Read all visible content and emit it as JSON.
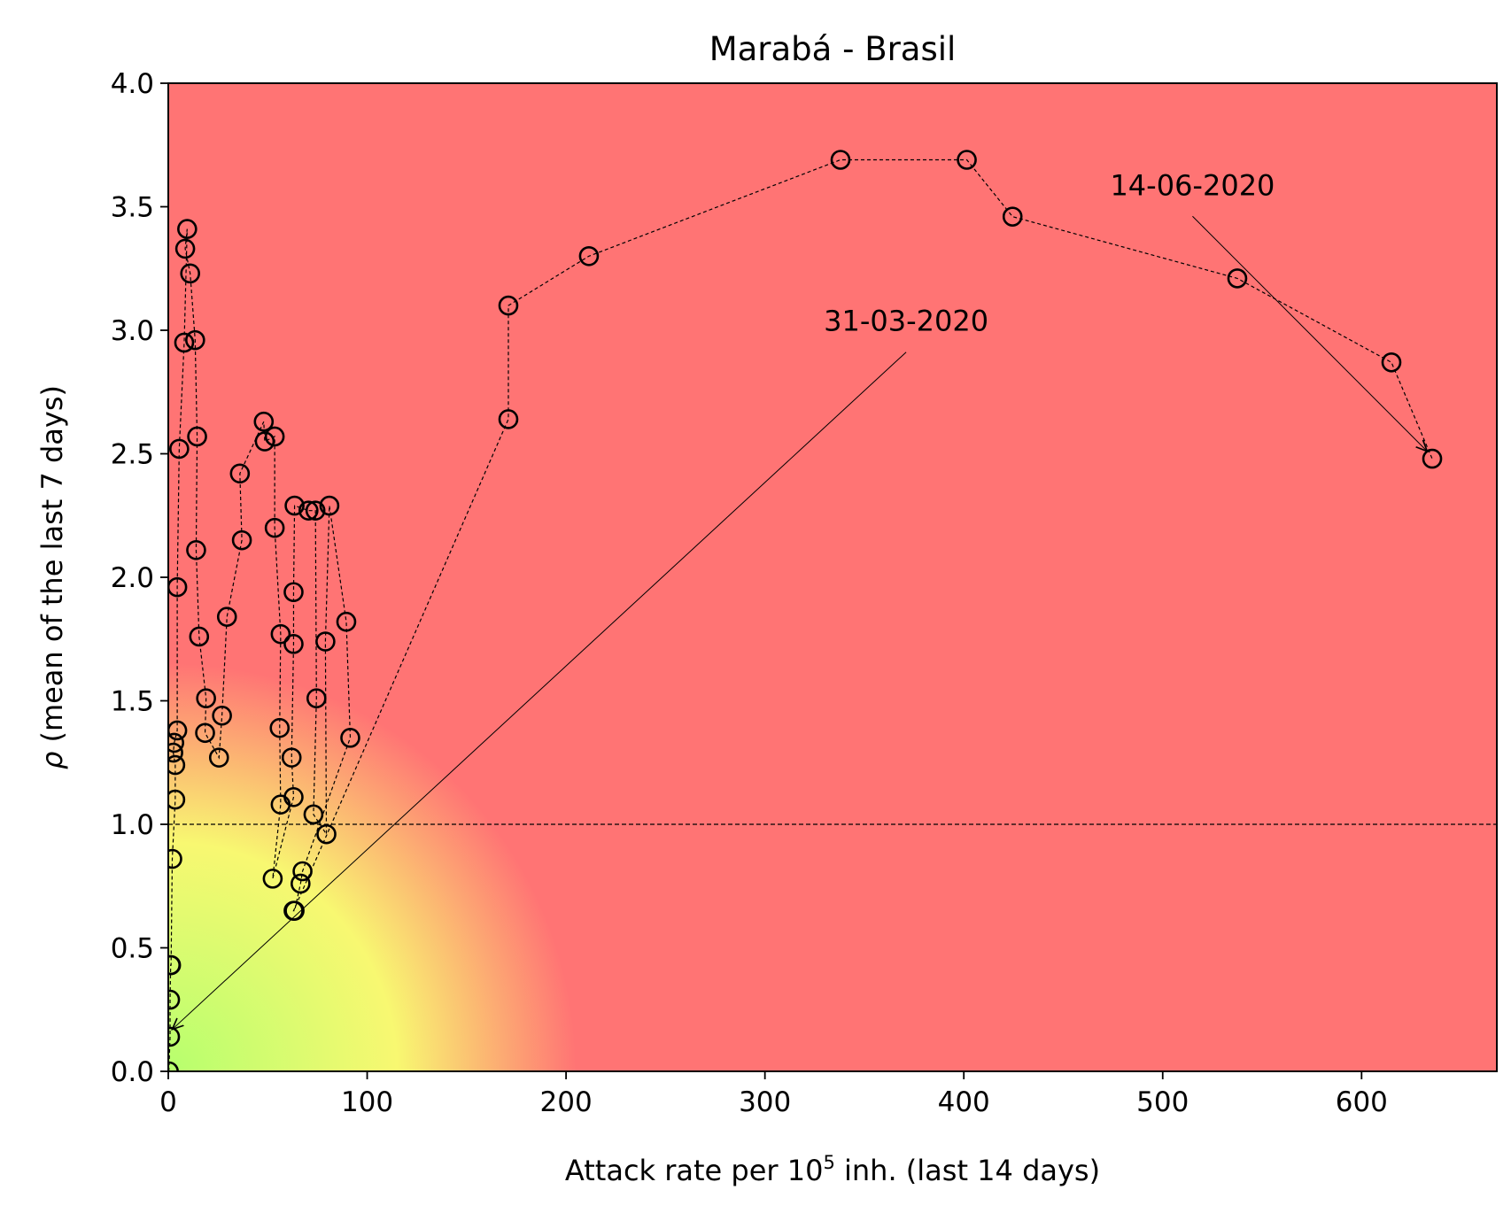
{
  "chart_data": {
    "type": "scatter",
    "title": "Marabá - Brasil",
    "xlabel_prefix": "Attack rate per 10",
    "xlabel_sup": "5",
    "xlabel_suffix": " inh. (last 14 days)",
    "ylabel_symbol": "ρ",
    "ylabel_text": " (mean of the last 7 days)",
    "xlim": [
      0,
      668
    ],
    "ylim": [
      0,
      4.0
    ],
    "xticks": [
      0,
      100,
      200,
      300,
      400,
      500,
      600
    ],
    "yticks": [
      0.0,
      0.5,
      1.0,
      1.5,
      2.0,
      2.5,
      3.0,
      3.5,
      4.0
    ],
    "xtick_labels": [
      "0",
      "100",
      "200",
      "300",
      "400",
      "500",
      "600"
    ],
    "ytick_labels": [
      "0.0",
      "0.5",
      "1.0",
      "1.5",
      "2.0",
      "2.5",
      "3.0",
      "3.5",
      "4.0"
    ],
    "reference_line_y": 1.0,
    "background_colors": {
      "low": "#b6ff6e",
      "mid": "#f8f871",
      "high": "#ff7474"
    },
    "marker_color": "#000000",
    "series": [
      {
        "points": [
          [
            0.3,
            0.0
          ],
          [
            0.9,
            0.14
          ],
          [
            0.9,
            0.29
          ],
          [
            1.2,
            0.43
          ],
          [
            1.4,
            0.43
          ],
          [
            2.0,
            0.86
          ],
          [
            3.5,
            1.1
          ],
          [
            3.5,
            1.24
          ],
          [
            2.5,
            1.29
          ],
          [
            3.0,
            1.33
          ],
          [
            4.5,
            1.38
          ],
          [
            4.5,
            1.96
          ],
          [
            5.5,
            2.52
          ],
          [
            8.0,
            2.95
          ],
          [
            9.5,
            3.41
          ],
          [
            8.5,
            3.33
          ],
          [
            11.0,
            3.23
          ],
          [
            13.5,
            2.96
          ],
          [
            14.5,
            2.57
          ],
          [
            14.0,
            2.11
          ],
          [
            15.5,
            1.76
          ],
          [
            19.0,
            1.51
          ],
          [
            18.5,
            1.37
          ],
          [
            25.5,
            1.27
          ],
          [
            27.0,
            1.44
          ],
          [
            29.5,
            1.84
          ],
          [
            37.0,
            2.15
          ],
          [
            36.0,
            2.42
          ],
          [
            48.0,
            2.63
          ],
          [
            48.5,
            2.55
          ],
          [
            53.5,
            2.57
          ],
          [
            53.5,
            2.2
          ],
          [
            56.5,
            1.77
          ],
          [
            56.0,
            1.39
          ],
          [
            56.5,
            1.08
          ],
          [
            52.5,
            0.78
          ],
          [
            63.0,
            1.11
          ],
          [
            62.0,
            1.27
          ],
          [
            63.0,
            1.73
          ],
          [
            63.0,
            1.94
          ],
          [
            63.5,
            2.29
          ],
          [
            70.5,
            2.27
          ],
          [
            74.0,
            2.27
          ],
          [
            74.5,
            1.51
          ],
          [
            73.0,
            1.04
          ],
          [
            79.5,
            0.96
          ],
          [
            79.0,
            1.74
          ],
          [
            81.0,
            2.29
          ],
          [
            89.5,
            1.82
          ],
          [
            91.5,
            1.35
          ],
          [
            67.5,
            0.81
          ],
          [
            66.5,
            0.76
          ],
          [
            63.5,
            0.65
          ],
          [
            63.0,
            0.65
          ],
          [
            171.0,
            2.64
          ],
          [
            171.0,
            3.1
          ],
          [
            211.5,
            3.3
          ],
          [
            338.0,
            3.69
          ],
          [
            401.5,
            3.69
          ],
          [
            424.5,
            3.46
          ],
          [
            537.5,
            3.21
          ],
          [
            615.0,
            2.87
          ],
          [
            635.5,
            2.48
          ]
        ]
      }
    ],
    "annotations": [
      {
        "text": "31-03-2020",
        "xy": [
          2,
          0.17
        ],
        "xytext": [
          371,
          2.94
        ]
      },
      {
        "text": "14-06-2020",
        "xy": [
          633,
          2.51
        ],
        "xytext": [
          515,
          3.49
        ]
      }
    ]
  }
}
